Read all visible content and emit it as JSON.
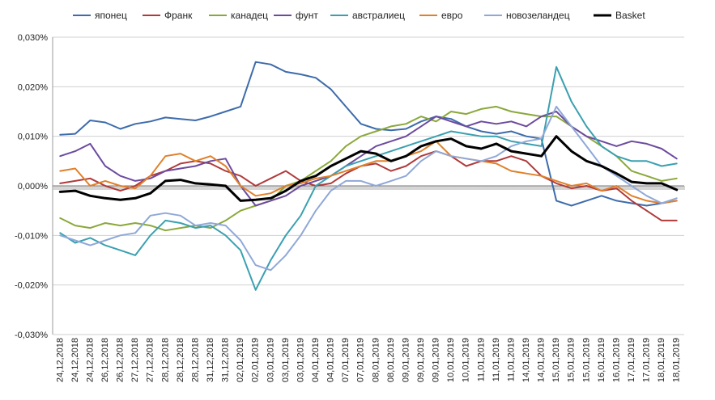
{
  "chart_data": {
    "type": "line",
    "title": "",
    "xlabel": "",
    "ylabel": "",
    "ylim": [
      -0.03,
      0.03
    ],
    "y_ticks": [
      "0,030%",
      "0,020%",
      "0,010%",
      "0,000%",
      "-0,010%",
      "-0,020%",
      "-0,030%"
    ],
    "y_tick_values": [
      0.03,
      0.02,
      0.01,
      0.0,
      -0.01,
      -0.02,
      -0.03
    ],
    "grid": true,
    "legend_position": "top",
    "categories": [
      "24,12,2018",
      "24,12,2018",
      "24,12,2018",
      "26,12,2018",
      "26,12,2018",
      "27,12,2018",
      "27,12,2018",
      "28,12,2018",
      "28,12,2018",
      "28,12,2018",
      "31,12,2018",
      "31,12,2018",
      "02,01,2019",
      "02,01,2019",
      "03,01,2019",
      "03,01,2019",
      "03,01,2019",
      "04,01,2019",
      "04,01,2019",
      "07,01,2019",
      "07,01,2019",
      "08,01,2019",
      "08,01,2019",
      "09,01,2019",
      "09,01,2019",
      "09,01,2019",
      "10,01,2019",
      "10,01,2019",
      "11,01,2019",
      "11,01,2019",
      "11,01,2019",
      "14,01,2019",
      "14,01,2019",
      "15,01,2019",
      "15,01,2019",
      "15,01,2019",
      "16,01,2019",
      "16,01,2019",
      "17,01,2019",
      "17,01,2019",
      "18,01,2019",
      "18,01,2019"
    ],
    "series": [
      {
        "name": "японец",
        "color": "#3d6bab",
        "width": 2,
        "values": [
          0.0103,
          0.0105,
          0.0132,
          0.0128,
          0.0115,
          0.0125,
          0.013,
          0.0138,
          0.0135,
          0.0132,
          0.014,
          0.015,
          0.016,
          0.025,
          0.0245,
          0.023,
          0.0225,
          0.0218,
          0.0195,
          0.016,
          0.0125,
          0.0115,
          0.0112,
          0.0115,
          0.013,
          0.014,
          0.0135,
          0.012,
          0.011,
          0.0105,
          0.011,
          0.01,
          0.0095,
          -0.003,
          -0.004,
          -0.003,
          -0.002,
          -0.003,
          -0.0035,
          -0.004,
          -0.0035,
          -0.003
        ]
      },
      {
        "name": "Франк",
        "color": "#b03a3a",
        "width": 2,
        "values": [
          0.0005,
          0.001,
          0.0015,
          0.0,
          -0.001,
          0.0,
          0.002,
          0.003,
          0.0045,
          0.005,
          0.0045,
          0.003,
          0.002,
          0.0,
          0.0015,
          0.003,
          0.001,
          0.0,
          0.0005,
          0.0025,
          0.004,
          0.0045,
          0.003,
          0.004,
          0.006,
          0.007,
          0.006,
          0.004,
          0.005,
          0.005,
          0.006,
          0.005,
          0.002,
          0.0005,
          -0.0005,
          0.0,
          -0.001,
          -0.0005,
          -0.003,
          -0.005,
          -0.007,
          -0.007
        ]
      },
      {
        "name": "канадец",
        "color": "#8aa83a",
        "width": 2,
        "values": [
          -0.0065,
          -0.008,
          -0.0085,
          -0.0075,
          -0.008,
          -0.0075,
          -0.008,
          -0.009,
          -0.0085,
          -0.008,
          -0.0085,
          -0.007,
          -0.005,
          -0.004,
          -0.003,
          0.0,
          0.001,
          0.003,
          0.005,
          0.008,
          0.01,
          0.011,
          0.012,
          0.0125,
          0.014,
          0.013,
          0.015,
          0.0145,
          0.0155,
          0.016,
          0.015,
          0.0145,
          0.014,
          0.014,
          0.012,
          0.01,
          0.008,
          0.006,
          0.003,
          0.002,
          0.001,
          0.0015
        ]
      },
      {
        "name": "фунт",
        "color": "#6c4a9e",
        "width": 2,
        "values": [
          0.006,
          0.007,
          0.0085,
          0.004,
          0.002,
          0.001,
          0.0015,
          0.003,
          0.0035,
          0.004,
          0.005,
          0.0055,
          0.0,
          -0.004,
          -0.003,
          -0.002,
          0.0,
          0.001,
          0.002,
          0.004,
          0.006,
          0.008,
          0.009,
          0.01,
          0.012,
          0.014,
          0.013,
          0.012,
          0.013,
          0.0125,
          0.013,
          0.012,
          0.014,
          0.015,
          0.012,
          0.01,
          0.009,
          0.008,
          0.009,
          0.0085,
          0.0075,
          0.0055
        ]
      },
      {
        "name": "австралиец",
        "color": "#3aa0b0",
        "width": 2,
        "values": [
          -0.0095,
          -0.0115,
          -0.0105,
          -0.012,
          -0.013,
          -0.014,
          -0.01,
          -0.007,
          -0.0075,
          -0.0085,
          -0.008,
          -0.01,
          -0.013,
          -0.021,
          -0.015,
          -0.01,
          -0.006,
          0.0,
          0.002,
          0.004,
          0.005,
          0.006,
          0.007,
          0.008,
          0.009,
          0.01,
          0.011,
          0.0105,
          0.01,
          0.01,
          0.009,
          0.0085,
          0.008,
          0.024,
          0.017,
          0.012,
          0.008,
          0.006,
          0.005,
          0.005,
          0.004,
          0.0045
        ]
      },
      {
        "name": "евро",
        "color": "#e0802a",
        "width": 2,
        "values": [
          0.003,
          0.0035,
          0.0,
          0.001,
          0.0,
          -0.0005,
          0.002,
          0.006,
          0.0065,
          0.005,
          0.006,
          0.004,
          0.0,
          -0.002,
          -0.0015,
          0.0,
          0.0005,
          0.0015,
          0.002,
          0.003,
          0.004,
          0.005,
          0.005,
          0.006,
          0.007,
          0.009,
          0.006,
          0.0055,
          0.005,
          0.0045,
          0.003,
          0.0025,
          0.002,
          0.001,
          0.0,
          0.0005,
          -0.001,
          0.0,
          -0.002,
          -0.003,
          -0.0035,
          -0.003
        ]
      },
      {
        "name": "новозеландец",
        "color": "#8fa8d8",
        "width": 2,
        "values": [
          -0.01,
          -0.011,
          -0.012,
          -0.011,
          -0.01,
          -0.0095,
          -0.006,
          -0.0055,
          -0.006,
          -0.008,
          -0.0075,
          -0.008,
          -0.011,
          -0.016,
          -0.017,
          -0.014,
          -0.01,
          -0.005,
          -0.001,
          0.001,
          0.001,
          0.0,
          0.001,
          0.002,
          0.005,
          0.007,
          0.006,
          0.0055,
          0.005,
          0.006,
          0.008,
          0.009,
          0.0095,
          0.016,
          0.012,
          0.008,
          0.004,
          0.002,
          0.0,
          -0.002,
          -0.0035,
          -0.0025
        ]
      },
      {
        "name": "Basket",
        "color": "#000000",
        "width": 3,
        "values": [
          -0.0012,
          -0.001,
          -0.002,
          -0.0025,
          -0.0028,
          -0.0025,
          -0.0015,
          0.001,
          0.0012,
          0.0005,
          0.0003,
          0.0,
          -0.003,
          -0.0028,
          -0.0025,
          -0.001,
          0.001,
          0.002,
          0.004,
          0.0055,
          0.007,
          0.0065,
          0.005,
          0.006,
          0.008,
          0.009,
          0.0095,
          0.008,
          0.0075,
          0.0085,
          0.007,
          0.0065,
          0.006,
          0.01,
          0.007,
          0.005,
          0.004,
          0.0025,
          0.0008,
          0.0005,
          0.0005,
          -0.0008
        ]
      }
    ]
  }
}
